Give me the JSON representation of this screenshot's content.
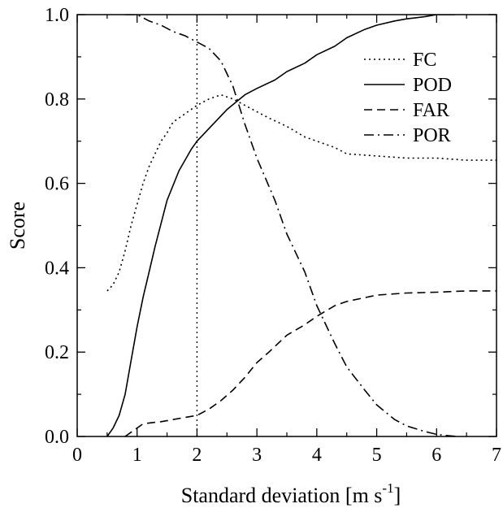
{
  "chart_data": {
    "type": "line",
    "xlabel": "Standard deviation [m s",
    "xlabel_sup": "-1",
    "xlabel_suffix": "]",
    "ylabel": "Score",
    "xlim": [
      0,
      7
    ],
    "ylim": [
      0,
      1
    ],
    "xticks": [
      "0",
      "1",
      "2",
      "3",
      "4",
      "5",
      "6",
      "7"
    ],
    "yticks": [
      "0.0",
      "0.2",
      "0.4",
      "0.6",
      "0.8",
      "1.0"
    ],
    "grid": false,
    "legend_position": "top-right",
    "reference_line": {
      "x": 2,
      "style": "dotted"
    },
    "series": [
      {
        "name": "FC",
        "style": "dotted",
        "x": [
          0.5,
          0.6,
          0.7,
          0.8,
          0.9,
          1.0,
          1.1,
          1.2,
          1.3,
          1.4,
          1.5,
          1.6,
          1.8,
          2.0,
          2.2,
          2.4,
          2.6,
          2.8,
          3.0,
          3.2,
          3.5,
          3.8,
          4.0,
          4.3,
          4.5,
          5.0,
          5.5,
          6.0,
          6.5,
          7.0
        ],
        "y": [
          0.345,
          0.36,
          0.39,
          0.44,
          0.5,
          0.55,
          0.6,
          0.64,
          0.67,
          0.7,
          0.72,
          0.745,
          0.765,
          0.785,
          0.8,
          0.81,
          0.8,
          0.785,
          0.77,
          0.755,
          0.735,
          0.71,
          0.7,
          0.685,
          0.67,
          0.665,
          0.66,
          0.66,
          0.655,
          0.655
        ]
      },
      {
        "name": "POD",
        "style": "solid",
        "x": [
          0.5,
          0.6,
          0.7,
          0.8,
          0.9,
          1.0,
          1.1,
          1.2,
          1.3,
          1.5,
          1.7,
          1.9,
          2.0,
          2.2,
          2.5,
          2.8,
          3.0,
          3.3,
          3.5,
          3.8,
          4.0,
          4.3,
          4.5,
          4.8,
          5.0,
          5.3,
          5.5,
          5.8,
          6.0,
          6.3
        ],
        "y": [
          0.0,
          0.02,
          0.05,
          0.1,
          0.18,
          0.26,
          0.33,
          0.39,
          0.45,
          0.56,
          0.63,
          0.68,
          0.7,
          0.73,
          0.775,
          0.81,
          0.825,
          0.845,
          0.865,
          0.885,
          0.905,
          0.925,
          0.945,
          0.965,
          0.975,
          0.985,
          0.99,
          0.995,
          1.0,
          1.0
        ]
      },
      {
        "name": "FAR",
        "style": "dashed",
        "x": [
          0.8,
          0.9,
          1.0,
          1.1,
          1.2,
          1.4,
          1.6,
          1.8,
          2.0,
          2.2,
          2.4,
          2.6,
          2.8,
          3.0,
          3.2,
          3.5,
          3.8,
          4.0,
          4.3,
          4.5,
          5.0,
          5.5,
          6.0,
          6.5,
          7.0
        ],
        "y": [
          0.0,
          0.01,
          0.02,
          0.03,
          0.032,
          0.035,
          0.04,
          0.045,
          0.05,
          0.065,
          0.085,
          0.11,
          0.14,
          0.175,
          0.2,
          0.24,
          0.265,
          0.285,
          0.31,
          0.32,
          0.335,
          0.34,
          0.342,
          0.345,
          0.345
        ]
      },
      {
        "name": "POR",
        "style": "dash-dot",
        "x": [
          0.8,
          1.0,
          1.2,
          1.4,
          1.6,
          1.8,
          2.0,
          2.2,
          2.4,
          2.6,
          2.8,
          3.0,
          3.3,
          3.5,
          3.8,
          4.0,
          4.3,
          4.5,
          4.8,
          5.0,
          5.3,
          5.5,
          5.8,
          6.0,
          6.2,
          6.35
        ],
        "y": [
          1.0,
          1.0,
          0.985,
          0.975,
          0.96,
          0.95,
          0.935,
          0.92,
          0.89,
          0.83,
          0.74,
          0.66,
          0.56,
          0.48,
          0.39,
          0.31,
          0.22,
          0.165,
          0.11,
          0.075,
          0.04,
          0.025,
          0.012,
          0.005,
          0.002,
          0.0
        ]
      }
    ]
  }
}
